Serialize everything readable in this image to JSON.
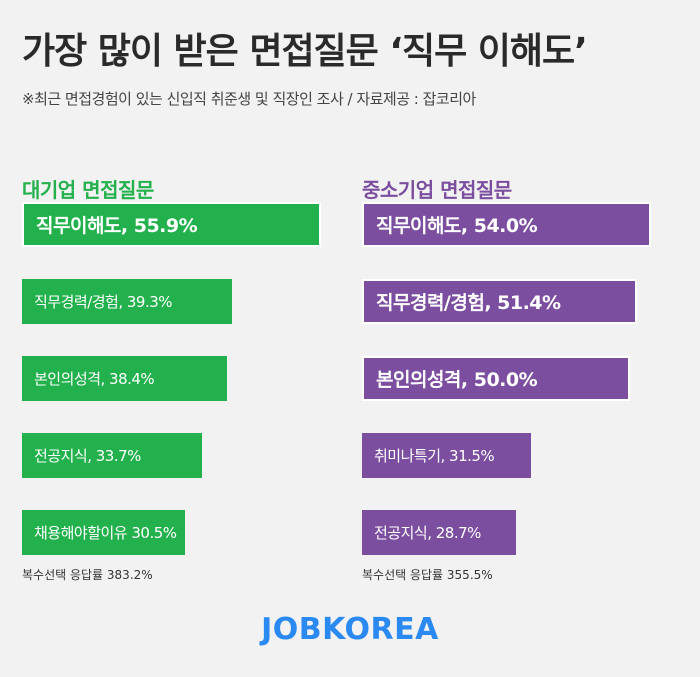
{
  "title": "가장 많이 받은 면접질문 ‘직무 이해도’",
  "subtitle": "※최근 면접경험이 있는 신입직 취준생 및 직장인 조사 / 자료제공 : 잡코리아",
  "brand": "JOBKOREA",
  "colors": {
    "green": "#22b14c",
    "purple": "#7c4e9f",
    "brand_blue": "#2a8af2"
  },
  "chart_data": [
    {
      "type": "bar",
      "orientation": "horizontal",
      "title": "대기업 면접질문",
      "color": "#22b14c",
      "categories": [
        "직무이해도",
        "직무경력/경험",
        "본인의성격",
        "전공지식",
        "채용해야할이유"
      ],
      "values": [
        55.9,
        39.3,
        38.4,
        33.7,
        30.5
      ],
      "labels": [
        "직무이해도, 55.9%",
        "직무경력/경험, 39.3%",
        "본인의성격, 38.4%",
        "전공지식, 33.7%",
        "채용해야할이유 30.5%"
      ],
      "highlight": [
        true,
        false,
        false,
        false,
        false
      ],
      "footnote": "복수선택 응답률 383.2%"
    },
    {
      "type": "bar",
      "orientation": "horizontal",
      "title": "중소기업 면접질문",
      "color": "#7c4e9f",
      "categories": [
        "직무이해도",
        "직무경력/경험",
        "본인의성격",
        "취미나특기",
        "전공지식"
      ],
      "values": [
        54.0,
        51.4,
        50.0,
        31.5,
        28.7
      ],
      "labels": [
        "직무이해도, 54.0%",
        "직무경력/경험, 51.4%",
        "본인의성격, 50.0%",
        "취미나특기, 31.5%",
        "전공지식, 28.7%"
      ],
      "highlight": [
        true,
        true,
        true,
        false,
        false
      ],
      "footnote": "복수선택 응답률 355.5%"
    }
  ]
}
